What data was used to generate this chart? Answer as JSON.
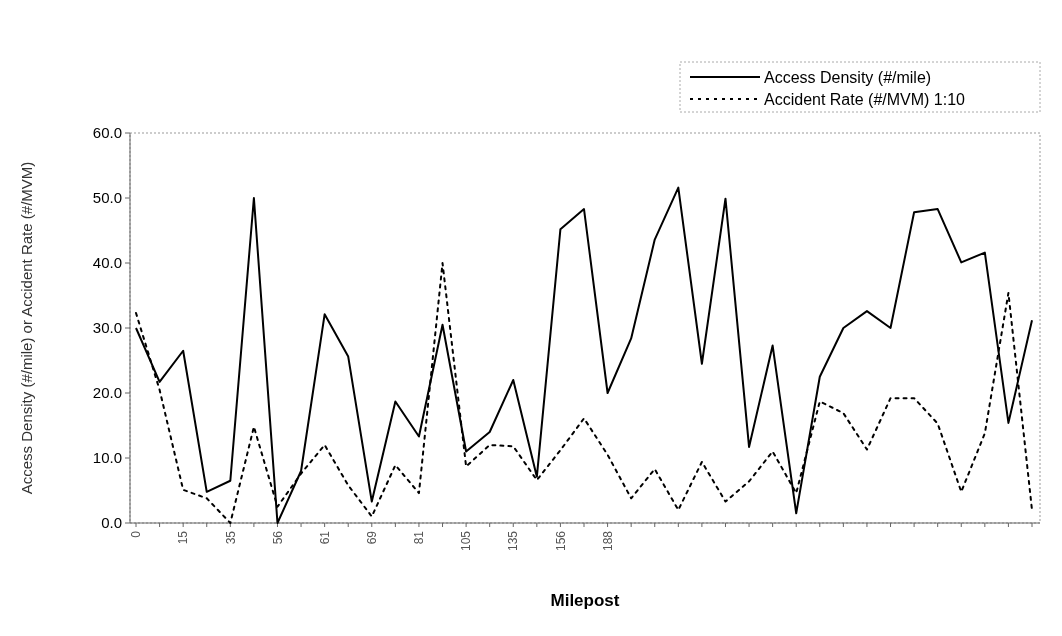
{
  "chart_data": {
    "type": "line",
    "xlabel": "Milepost",
    "ylabel": "Access Density (#/mile) or Accident Rate (#/MVM)",
    "categories": [
      "0",
      null,
      "15",
      null,
      "35",
      null,
      "56",
      null,
      "61",
      null,
      "69",
      null,
      "81",
      null,
      "105",
      null,
      "135",
      null,
      "156",
      null,
      "188",
      null,
      null,
      null,
      null,
      null,
      null,
      null,
      null,
      null,
      null,
      null,
      null,
      null,
      null,
      null,
      null,
      null,
      null
    ],
    "series": [
      {
        "name": "Access Density (#/mile)",
        "color": "#000000",
        "line_style": "solid",
        "values": [
          30.0,
          21.7,
          26.5,
          4.8,
          6.5,
          50.0,
          0,
          8.0,
          32.1,
          25.6,
          3.3,
          18.7,
          13.3,
          30.5,
          11.0,
          14.0,
          22.0,
          7.1,
          45.2,
          48.3,
          20.0,
          28.4,
          43.6,
          51.6,
          24.5,
          49.9,
          11.7,
          27.3,
          1.5,
          22.5,
          30.0,
          32.6,
          30.0,
          47.8,
          48.3,
          40.1,
          41.6,
          15.4,
          31.2
        ]
      },
      {
        "name": "Accident Rate (#/MVM) 1:10",
        "color": "#000000",
        "line_style": "dotted",
        "values": [
          32.3,
          20.5,
          5.1,
          3.8,
          0,
          14.8,
          2.5,
          7.6,
          12.0,
          5.8,
          1.0,
          8.9,
          4.6,
          40.0,
          8.7,
          12.0,
          11.8,
          6.6,
          11.2,
          16.1,
          10.5,
          3.8,
          8.3,
          2.0,
          9.4,
          3.3,
          6.4,
          11.0,
          4.6,
          18.7,
          16.9,
          11.3,
          19.2,
          19.2,
          15.3,
          4.8,
          13.8,
          35.4,
          2.0
        ]
      }
    ],
    "ylim": [
      0,
      60
    ],
    "yticks": [
      {
        "value": 0,
        "label": "0.0"
      },
      {
        "value": 10,
        "label": "10.0"
      },
      {
        "value": 20,
        "label": "20.0"
      },
      {
        "value": 30,
        "label": "30.0"
      },
      {
        "value": 40,
        "label": "40.0"
      },
      {
        "value": 50,
        "label": "50.0"
      },
      {
        "value": 60,
        "label": "60.0"
      }
    ],
    "grid": false,
    "legend": "top right",
    "marker": "none"
  }
}
